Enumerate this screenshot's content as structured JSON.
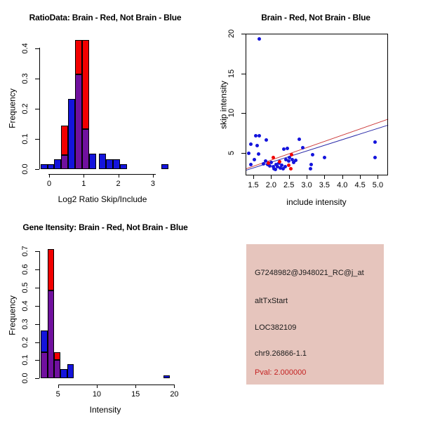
{
  "figure_caption": "R four-panel splicing analysis figure",
  "colors": {
    "blue": "#1414DC",
    "red": "#F20000",
    "purple": "#70109E",
    "trend_red": "#CC3A3A",
    "trend_blue": "#2A2AA8",
    "axis": "#000000",
    "info_bg": "#E6C5BD",
    "info_text": "#1A1A1A",
    "pval_text": "#C42222"
  },
  "info": {
    "lines": [
      "G7248982@J948021_RC@j_at",
      "altTxStart",
      "LOC382109",
      "chr9.26866-1.1",
      "Pval: 2.000000"
    ]
  },
  "chart_data": {
    "hist_ratio": {
      "type": "bar",
      "subtype": "overlaid-histograms",
      "title": "RatioData: Brain - Red, Not Brain - Blue",
      "xlabel": "Log2 Ratio Skip/Include",
      "ylabel": "Frequency",
      "legend": {
        "red": "Brain",
        "blue": "Not Brain",
        "purple": "overlap"
      },
      "x_ticks": [
        "0",
        "1",
        "2",
        "3"
      ],
      "y_ticks": [
        "0.0",
        "0.1",
        "0.2",
        "0.3",
        "0.4"
      ],
      "xlim": [
        -0.3,
        3.5
      ],
      "ylim": [
        0,
        0.43
      ],
      "bin_width": 0.2,
      "bars": [
        {
          "x0": -0.25,
          "x1": -0.05,
          "segments": [
            {
              "color": "blue",
              "from": 0,
              "to": 0.017
            }
          ]
        },
        {
          "x0": -0.05,
          "x1": 0.15,
          "segments": [
            {
              "color": "blue",
              "from": 0,
              "to": 0.017
            }
          ]
        },
        {
          "x0": 0.15,
          "x1": 0.35,
          "segments": [
            {
              "color": "blue",
              "from": 0,
              "to": 0.033
            }
          ]
        },
        {
          "x0": 0.35,
          "x1": 0.55,
          "segments": [
            {
              "color": "purple",
              "from": 0,
              "to": 0.047
            },
            {
              "color": "red",
              "from": 0.047,
              "to": 0.145
            }
          ]
        },
        {
          "x0": 0.55,
          "x1": 0.75,
          "segments": [
            {
              "color": "blue",
              "from": 0,
              "to": 0.233
            }
          ]
        },
        {
          "x0": 0.75,
          "x1": 0.95,
          "segments": [
            {
              "color": "purple",
              "from": 0,
              "to": 0.313
            },
            {
              "color": "red",
              "from": 0.313,
              "to": 0.428
            }
          ]
        },
        {
          "x0": 0.95,
          "x1": 1.15,
          "segments": [
            {
              "color": "purple",
              "from": 0,
              "to": 0.133
            },
            {
              "color": "red",
              "from": 0.133,
              "to": 0.428
            }
          ]
        },
        {
          "x0": 1.15,
          "x1": 1.35,
          "segments": [
            {
              "color": "blue",
              "from": 0,
              "to": 0.05
            }
          ]
        },
        {
          "x0": 1.45,
          "x1": 1.65,
          "segments": [
            {
              "color": "blue",
              "from": 0,
              "to": 0.05
            }
          ]
        },
        {
          "x0": 1.65,
          "x1": 1.85,
          "segments": [
            {
              "color": "blue",
              "from": 0,
              "to": 0.033
            }
          ]
        },
        {
          "x0": 1.85,
          "x1": 2.05,
          "segments": [
            {
              "color": "blue",
              "from": 0,
              "to": 0.033
            }
          ]
        },
        {
          "x0": 2.05,
          "x1": 2.25,
          "segments": [
            {
              "color": "blue",
              "from": 0,
              "to": 0.017
            }
          ]
        },
        {
          "x0": 3.25,
          "x1": 3.45,
          "segments": [
            {
              "color": "blue",
              "from": 0,
              "to": 0.017
            }
          ]
        }
      ]
    },
    "scatter": {
      "type": "scatter",
      "title": "Brain - Red, Not Brain - Blue",
      "xlabel": "include intensity",
      "ylabel": "skip intensity",
      "x_ticks": [
        "1.5",
        "2.0",
        "2.5",
        "3.0",
        "3.5",
        "4.0",
        "4.5",
        "5.0"
      ],
      "y_ticks": [
        "5",
        "10",
        "15",
        "20"
      ],
      "xlim": [
        1.29,
        5.29
      ],
      "ylim": [
        2.35,
        20.1
      ],
      "series": [
        {
          "name": "Not Brain",
          "color": "blue",
          "points": [
            [
              1.67,
              19.3
            ],
            [
              1.57,
              7.2
            ],
            [
              1.67,
              7.2
            ],
            [
              1.87,
              6.6
            ],
            [
              1.43,
              6.1
            ],
            [
              1.6,
              5.9
            ],
            [
              1.37,
              5.0
            ],
            [
              1.65,
              4.85
            ],
            [
              1.52,
              4.2
            ],
            [
              1.44,
              3.55
            ],
            [
              1.84,
              4.0
            ],
            [
              1.78,
              3.6
            ],
            [
              1.91,
              3.55
            ],
            [
              2.0,
              3.85
            ],
            [
              1.97,
              3.4
            ],
            [
              2.07,
              3.25
            ],
            [
              2.08,
              3.0
            ],
            [
              2.14,
              3.55
            ],
            [
              2.19,
              3.3
            ],
            [
              2.13,
              2.95
            ],
            [
              2.22,
              3.7
            ],
            [
              2.26,
              3.1
            ],
            [
              2.3,
              3.5
            ],
            [
              2.34,
              3.0
            ],
            [
              2.4,
              3.25
            ],
            [
              2.35,
              5.45
            ],
            [
              2.45,
              5.6
            ],
            [
              2.41,
              4.2
            ],
            [
              2.5,
              4.0
            ],
            [
              2.52,
              4.4
            ],
            [
              2.6,
              4.2
            ],
            [
              2.63,
              3.8
            ],
            [
              2.7,
              4.1
            ],
            [
              2.8,
              6.75
            ],
            [
              2.9,
              5.7
            ],
            [
              3.12,
              3.55
            ],
            [
              3.1,
              3.0
            ],
            [
              3.17,
              4.75
            ],
            [
              3.5,
              4.45
            ],
            [
              4.93,
              6.4
            ],
            [
              4.93,
              4.4
            ]
          ]
        },
        {
          "name": "Brain",
          "color": "red",
          "points": [
            [
              1.93,
              3.7
            ],
            [
              2.06,
              4.45
            ],
            [
              2.24,
              3.9
            ],
            [
              2.49,
              3.5
            ],
            [
              2.57,
              4.8
            ],
            [
              2.55,
              3.0
            ]
          ]
        }
      ],
      "trend_lines": [
        {
          "color": "trend_red",
          "p1": [
            1.29,
            3.0
          ],
          "p2": [
            5.29,
            9.25
          ]
        },
        {
          "color": "trend_blue",
          "p1": [
            1.29,
            2.82
          ],
          "p2": [
            5.29,
            8.5
          ]
        }
      ]
    },
    "hist_gene": {
      "type": "bar",
      "subtype": "overlaid-histograms",
      "title": "Gene Itensity: Brain - Red, Not Brain - Blue",
      "xlabel": "Intensity",
      "ylabel": "Frequency",
      "legend": {
        "red": "Brain",
        "blue": "Not Brain",
        "purple": "overlap"
      },
      "x_ticks": [
        "5",
        "10",
        "15",
        "20"
      ],
      "y_ticks": [
        "0.0",
        "0.1",
        "0.2",
        "0.3",
        "0.4",
        "0.5",
        "0.6",
        "0.7"
      ],
      "xlim": [
        2.8,
        20
      ],
      "ylim": [
        0,
        0.71
      ],
      "bars": [
        {
          "x0": 2.78,
          "x1": 3.63,
          "segments": [
            {
              "color": "purple",
              "from": 0,
              "to": 0.145
            },
            {
              "color": "blue",
              "from": 0.145,
              "to": 0.265
            }
          ]
        },
        {
          "x0": 3.63,
          "x1": 4.48,
          "segments": [
            {
              "color": "purple",
              "from": 0,
              "to": 0.483
            },
            {
              "color": "red",
              "from": 0.483,
              "to": 0.71
            }
          ]
        },
        {
          "x0": 4.48,
          "x1": 5.33,
          "segments": [
            {
              "color": "purple",
              "from": 0,
              "to": 0.1
            },
            {
              "color": "red",
              "from": 0.1,
              "to": 0.145
            }
          ]
        },
        {
          "x0": 5.33,
          "x1": 6.18,
          "segments": [
            {
              "color": "blue",
              "from": 0,
              "to": 0.05
            }
          ]
        },
        {
          "x0": 6.18,
          "x1": 7.03,
          "segments": [
            {
              "color": "blue",
              "from": 0,
              "to": 0.08
            }
          ]
        },
        {
          "x0": 18.6,
          "x1": 19.45,
          "segments": [
            {
              "color": "blue",
              "from": 0,
              "to": 0.017
            }
          ]
        }
      ]
    }
  }
}
